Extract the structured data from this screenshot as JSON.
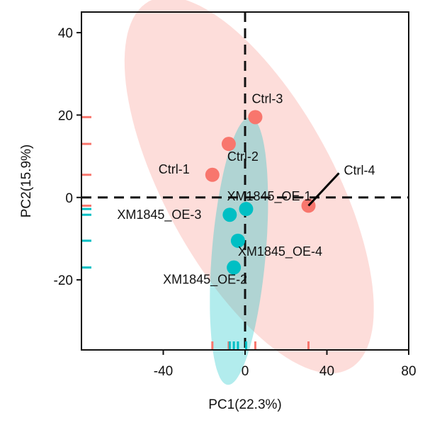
{
  "chart_data": {
    "type": "scatter",
    "title": "",
    "xlabel": "PC1(22.3%)",
    "ylabel": "PC2(15.9%)",
    "xlim": [
      -80,
      80
    ],
    "ylim": [
      -37,
      45
    ],
    "xticks": [
      -40,
      0,
      40,
      80
    ],
    "xtick_labels": [
      "-40",
      "0",
      "40",
      "80"
    ],
    "yticks": [
      -20,
      0,
      20,
      40
    ],
    "ytick_labels": [
      "-20",
      "0",
      "20",
      "40"
    ],
    "grid": false,
    "legend": "none",
    "reference_lines": {
      "x": 0,
      "y": 0,
      "style": "dashed"
    },
    "groups": [
      {
        "color": "#F8766D",
        "ellipse": {
          "center": [
            2,
            3
          ],
          "semi_axes": [
            70,
            30
          ],
          "rotation_deg": -33
        },
        "points": [
          {
            "label": "Ctrl-1",
            "x": -16,
            "y": 5.5
          },
          {
            "label": "Ctrl-2",
            "x": -8,
            "y": 13
          },
          {
            "label": "Ctrl-3",
            "x": 5,
            "y": 19.5
          },
          {
            "label": "Ctrl-4",
            "x": 31,
            "y": -2
          }
        ]
      },
      {
        "color": "#00BFC4",
        "ellipse": {
          "center": [
            -3,
            -13
          ],
          "semi_axes": [
            33,
            13
          ],
          "rotation_deg": 79
        },
        "points": [
          {
            "label": "XM1845_OE-1",
            "x": 0.5,
            "y": -2.8
          },
          {
            "label": "XM1845_OE-2",
            "x": -5.5,
            "y": -17
          },
          {
            "label": "XM1845_OE-3",
            "x": -7.5,
            "y": -4.2
          },
          {
            "label": "XM1845_OE-4",
            "x": -3.5,
            "y": -10.5
          }
        ]
      }
    ]
  }
}
